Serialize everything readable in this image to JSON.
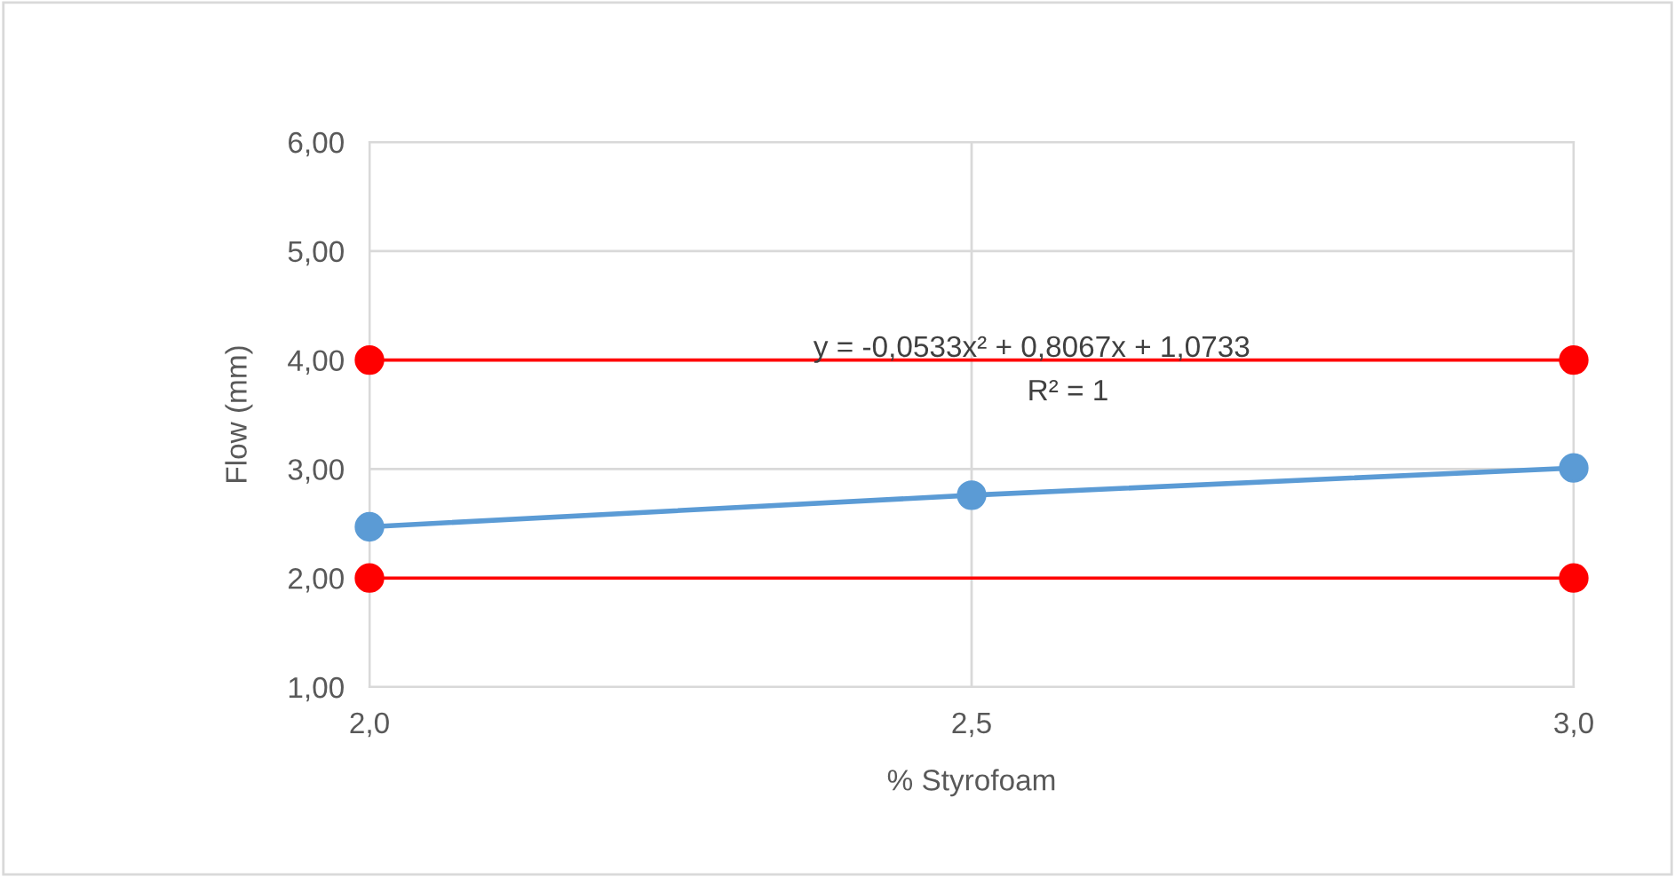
{
  "chart_data": {
    "type": "line",
    "xlabel": "% Styrofoam",
    "ylabel": "Flow (mm)",
    "series": [
      {
        "color": "#ff0000",
        "x": [
          2.0,
          3.0
        ],
        "values": [
          4.0,
          4.0
        ]
      },
      {
        "color": "#ff0000",
        "x": [
          2.0,
          3.0
        ],
        "values": [
          2.0,
          2.0
        ]
      },
      {
        "color": "#5b9bd5",
        "x": [
          2.0,
          2.5,
          3.0
        ],
        "values": [
          2.47,
          2.76,
          3.01
        ]
      }
    ],
    "annotations": [
      "y = -0,0533x² + 0,8067x + 1,0733",
      "R² = 1"
    ],
    "xlim": [
      2.0,
      3.0
    ],
    "ylim": [
      1.0,
      6.0
    ],
    "xticks": [
      {
        "value": 2.0,
        "label": "2,0"
      },
      {
        "value": 2.5,
        "label": "2,5"
      },
      {
        "value": 3.0,
        "label": "3,0"
      }
    ],
    "yticks": [
      {
        "value": 1,
        "label": "1,00"
      },
      {
        "value": 2,
        "label": "2,00"
      },
      {
        "value": 3,
        "label": "3,00"
      },
      {
        "value": 4,
        "label": "4,00"
      },
      {
        "value": 5,
        "label": "5,00"
      },
      {
        "value": 6,
        "label": "6,00"
      }
    ],
    "grid": true,
    "marker": "circle",
    "line_style": "solid",
    "legend": false
  }
}
